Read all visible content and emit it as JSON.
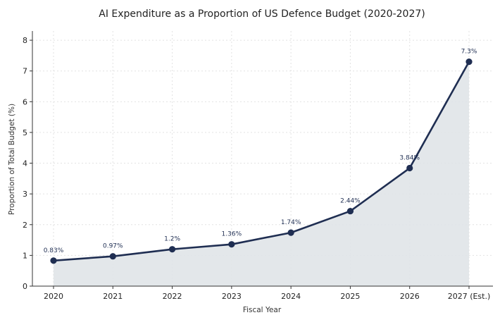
{
  "chart_data": {
    "type": "area",
    "title": "AI Expenditure as a Proportion of US Defence Budget (2020-2027)",
    "xlabel": "Fiscal Year",
    "ylabel": "Proportion of Total Budget (%)",
    "categories": [
      "2020",
      "2021",
      "2022",
      "2023",
      "2024",
      "2025",
      "2026",
      "2027 (Est.)"
    ],
    "values": [
      0.83,
      0.97,
      1.2,
      1.36,
      1.74,
      2.44,
      3.84,
      7.3
    ],
    "data_labels": [
      "0.83%",
      "0.97%",
      "1.2%",
      "1.36%",
      "1.74%",
      "2.44%",
      "3.84%",
      "7.3%"
    ],
    "ylim": [
      0,
      8.3
    ],
    "yticks": [
      "0",
      "1",
      "2",
      "3",
      "4",
      "5",
      "6",
      "7",
      "8"
    ],
    "grid": true,
    "colors": {
      "line": "#1f2e52",
      "fill": "#e0e4e8",
      "marker": "#1f2e52"
    }
  }
}
